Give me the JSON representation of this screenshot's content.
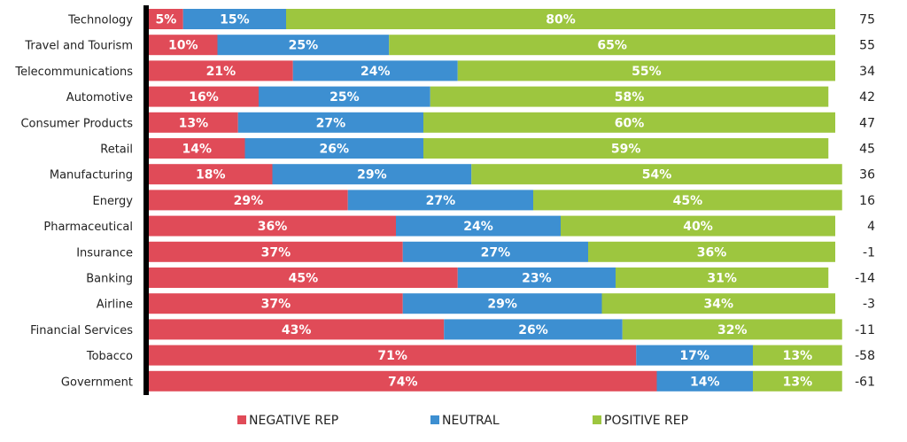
{
  "chart_data": {
    "type": "bar",
    "orientation": "horizontal",
    "stacked": true,
    "percent_stacked": true,
    "title": "",
    "xlabel": "",
    "ylabel": "",
    "xlim": [
      0,
      100
    ],
    "grid": false,
    "legend_position": "bottom",
    "categories": [
      "Technology",
      "Travel and Tourism",
      "Telecommunications",
      "Automotive",
      "Consumer Products",
      "Retail",
      "Manufacturing",
      "Energy",
      "Pharmaceutical",
      "Insurance",
      "Banking",
      "Airline",
      "Financial Services",
      "Tobacco",
      "Government"
    ],
    "series": [
      {
        "name": "NEGATIVE REP",
        "color": "#e04b58",
        "values": [
          5,
          10,
          21,
          16,
          13,
          14,
          18,
          29,
          36,
          37,
          45,
          37,
          43,
          71,
          74
        ]
      },
      {
        "name": "NEUTRAL",
        "color": "#3d8fd1",
        "values": [
          15,
          25,
          24,
          25,
          27,
          26,
          29,
          27,
          24,
          27,
          23,
          29,
          26,
          17,
          14
        ]
      },
      {
        "name": "POSITIVE REP",
        "color": "#9dc63f",
        "values": [
          80,
          65,
          55,
          58,
          60,
          59,
          54,
          45,
          40,
          36,
          31,
          34,
          32,
          13,
          13
        ]
      }
    ],
    "value_suffix": "%",
    "net_scores": [
      75,
      55,
      34,
      42,
      47,
      45,
      36,
      16,
      4,
      -1,
      -14,
      -3,
      -11,
      -58,
      -61
    ]
  }
}
